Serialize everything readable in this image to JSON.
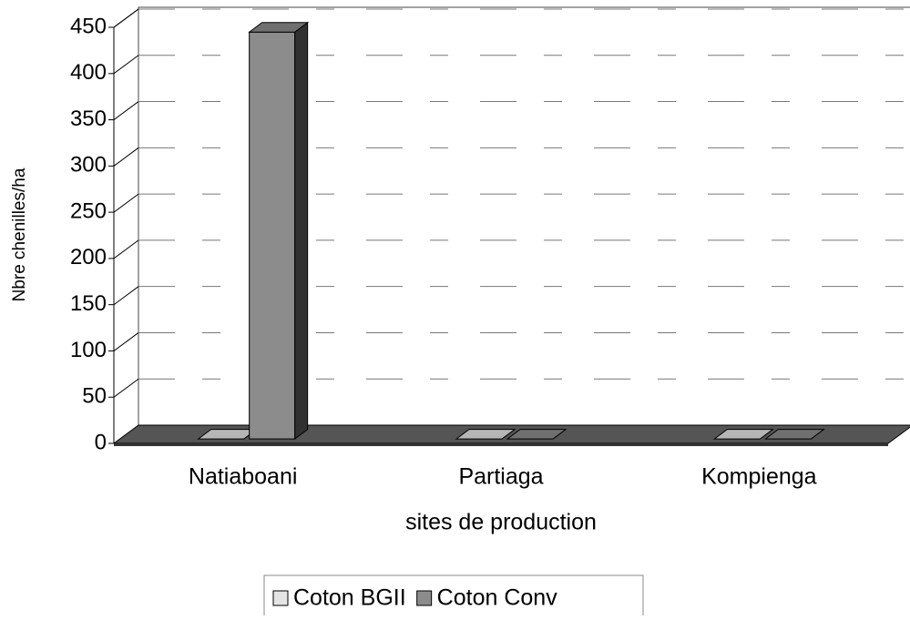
{
  "chart_data": {
    "type": "bar3d",
    "y_label": "Nbre chenilles/ha",
    "x_label": "sites de production",
    "categories": [
      "Natiaboani",
      "Partiaga",
      "Kompienga"
    ],
    "series": [
      {
        "name": "Coton BGII",
        "color": "#e4e4e4",
        "values": [
          0,
          0,
          0
        ]
      },
      {
        "name": "Coton Conv",
        "color": "#8c8c8c",
        "values": [
          440,
          0,
          0
        ]
      }
    ],
    "ylim": [
      0,
      450
    ],
    "yticks": [
      0,
      50,
      100,
      150,
      200,
      250,
      300,
      350,
      400,
      450
    ],
    "grid": true,
    "legend": "bottom"
  }
}
